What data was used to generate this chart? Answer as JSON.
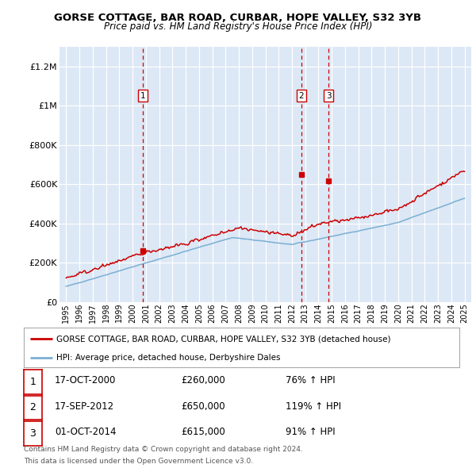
{
  "title": "GORSE COTTAGE, BAR ROAD, CURBAR, HOPE VALLEY, S32 3YB",
  "subtitle": "Price paid vs. HM Land Registry's House Price Index (HPI)",
  "ylabel_ticks": [
    "£0",
    "£200K",
    "£400K",
    "£600K",
    "£800K",
    "£1M",
    "£1.2M"
  ],
  "ytick_values": [
    0,
    200000,
    400000,
    600000,
    800000,
    1000000,
    1200000
  ],
  "ylim": [
    0,
    1300000
  ],
  "xlim_start": 1994.5,
  "xlim_end": 2025.5,
  "red_color": "#cc0000",
  "blue_color": "#7bafd4",
  "dashed_red": "#cc0000",
  "background_color": "#dce8f5",
  "grid_color": "#ffffff",
  "transaction_dates": [
    2000.79,
    2012.71,
    2014.75
  ],
  "transaction_prices": [
    260000,
    650000,
    615000
  ],
  "transaction_labels": [
    "1",
    "2",
    "3"
  ],
  "legend_entries": [
    "GORSE COTTAGE, BAR ROAD, CURBAR, HOPE VALLEY, S32 3YB (detached house)",
    "HPI: Average price, detached house, Derbyshire Dales"
  ],
  "table_data": [
    [
      "1",
      "17-OCT-2000",
      "£260,000",
      "76% ↑ HPI"
    ],
    [
      "2",
      "17-SEP-2012",
      "£650,000",
      "119% ↑ HPI"
    ],
    [
      "3",
      "01-OCT-2014",
      "£615,000",
      "91% ↑ HPI"
    ]
  ],
  "footnote1": "Contains HM Land Registry data © Crown copyright and database right 2024.",
  "footnote2": "This data is licensed under the Open Government Licence v3.0.",
  "xtick_years": [
    1995,
    1996,
    1997,
    1998,
    1999,
    2000,
    2001,
    2002,
    2003,
    2004,
    2005,
    2006,
    2007,
    2008,
    2009,
    2010,
    2011,
    2012,
    2013,
    2014,
    2015,
    2016,
    2017,
    2018,
    2019,
    2020,
    2021,
    2022,
    2023,
    2024,
    2025
  ]
}
